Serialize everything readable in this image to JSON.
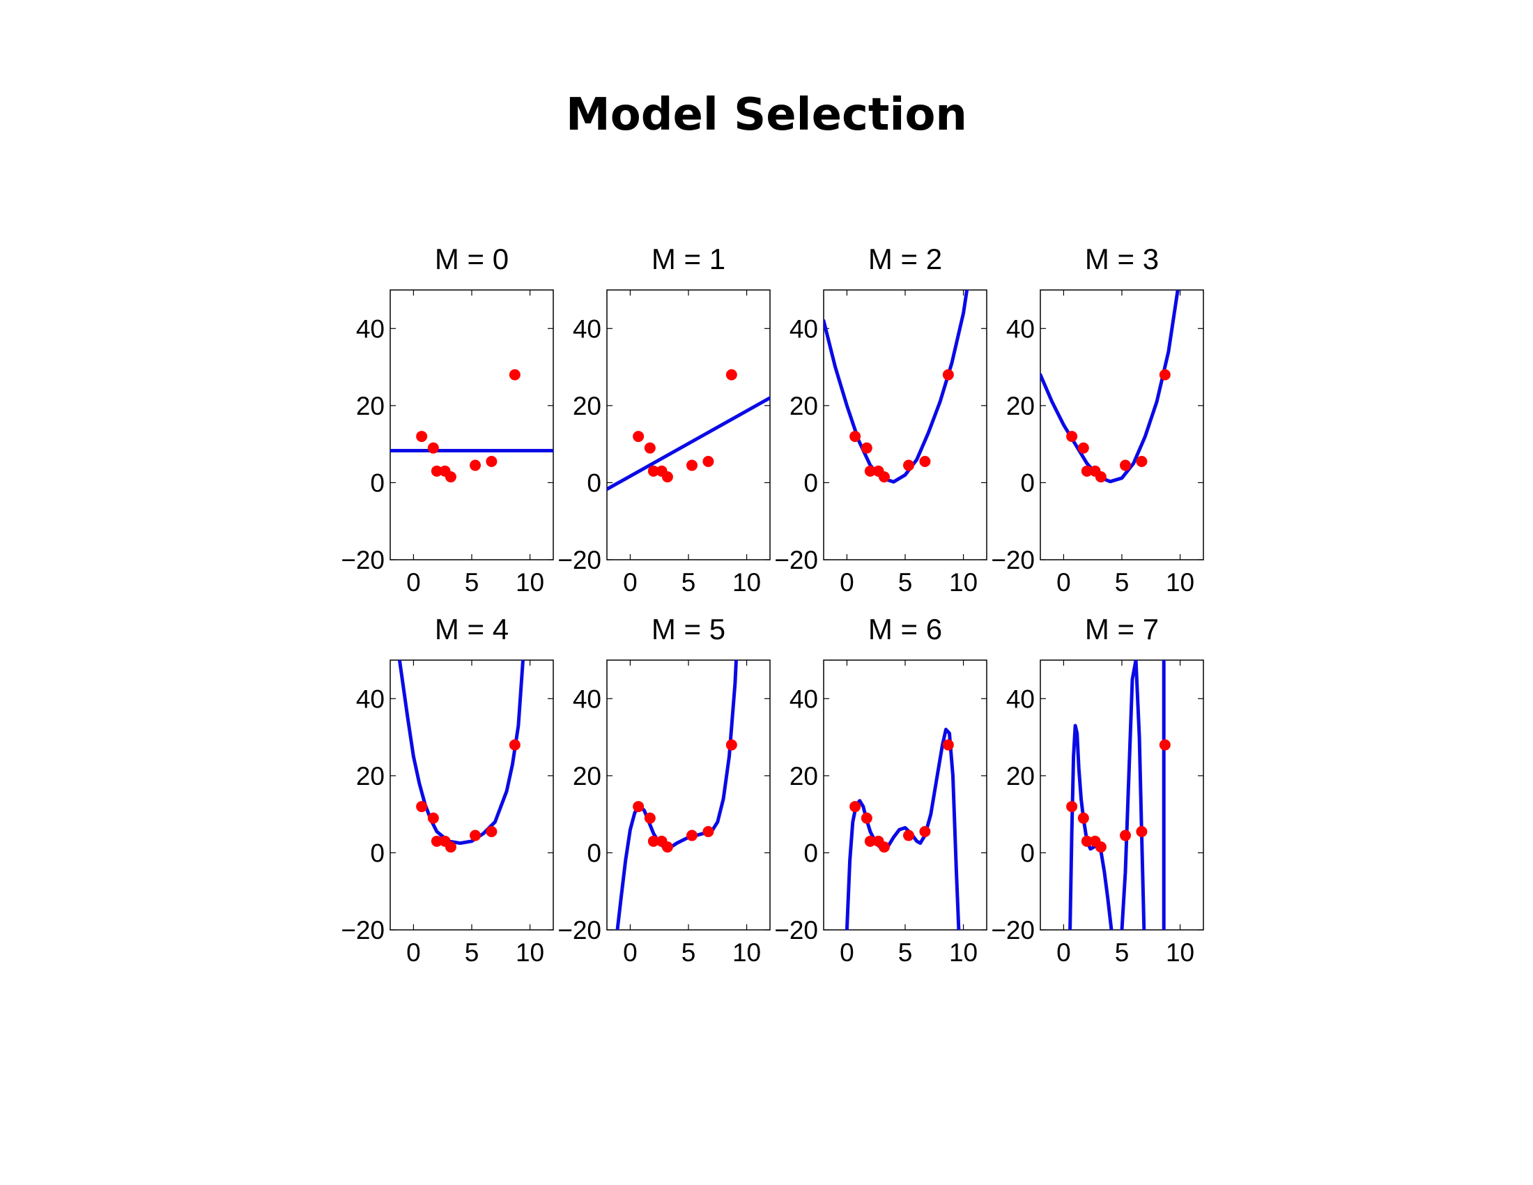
{
  "title": "Model Selection",
  "colors": {
    "curve": "#0a0ae6",
    "points": "#ff0000",
    "axes": "#000000",
    "background": "#ffffff"
  },
  "chart_data": [
    {
      "type": "line",
      "title": "M = 0",
      "xlim": [
        -2,
        12
      ],
      "ylim": [
        -20,
        50
      ],
      "xticks": [
        "0",
        "5",
        "10"
      ],
      "yticks": [
        "−20",
        "0",
        "20",
        "40"
      ],
      "grid": false,
      "points": {
        "x": [
          0.7,
          1.7,
          2.0,
          2.7,
          3.2,
          5.3,
          6.7,
          8.7
        ],
        "y": [
          12,
          9,
          3,
          3,
          1.5,
          4.5,
          5.5,
          28
        ]
      },
      "curve": {
        "x": [
          -2,
          12
        ],
        "y": [
          8.3,
          8.3
        ]
      }
    },
    {
      "type": "line",
      "title": "M = 1",
      "xlim": [
        -2,
        12
      ],
      "ylim": [
        -20,
        50
      ],
      "xticks": [
        "0",
        "5",
        "10"
      ],
      "yticks": [
        "−20",
        "0",
        "20",
        "40"
      ],
      "grid": false,
      "points": {
        "x": [
          0.7,
          1.7,
          2.0,
          2.7,
          3.2,
          5.3,
          6.7,
          8.7
        ],
        "y": [
          12,
          9,
          3,
          3,
          1.5,
          4.5,
          5.5,
          28
        ]
      },
      "curve": {
        "x": [
          -2,
          12
        ],
        "y": [
          -1.7,
          22
        ]
      }
    },
    {
      "type": "line",
      "title": "M = 2",
      "xlim": [
        -2,
        12
      ],
      "ylim": [
        -20,
        50
      ],
      "xticks": [
        "0",
        "5",
        "10"
      ],
      "yticks": [
        "−20",
        "0",
        "20",
        "40"
      ],
      "grid": false,
      "points": {
        "x": [
          0.7,
          1.7,
          2.0,
          2.7,
          3.2,
          5.3,
          6.7,
          8.7
        ],
        "y": [
          12,
          9,
          3,
          3,
          1.5,
          4.5,
          5.5,
          28
        ]
      },
      "curve": {
        "x": [
          -2,
          -1,
          0,
          1,
          2,
          3,
          4,
          5,
          6,
          7,
          8,
          9,
          10,
          10.3
        ],
        "y": [
          42,
          30,
          20,
          11,
          4.5,
          1.2,
          0.2,
          2,
          6,
          13,
          21,
          31,
          44,
          50
        ]
      }
    },
    {
      "type": "line",
      "title": "M = 3",
      "xlim": [
        -2,
        12
      ],
      "ylim": [
        -20,
        50
      ],
      "xticks": [
        "0",
        "5",
        "10"
      ],
      "yticks": [
        "−20",
        "0",
        "20",
        "40"
      ],
      "grid": false,
      "points": {
        "x": [
          0.7,
          1.7,
          2.0,
          2.7,
          3.2,
          5.3,
          6.7,
          8.7
        ],
        "y": [
          12,
          9,
          3,
          3,
          1.5,
          4.5,
          5.5,
          28
        ]
      },
      "curve": {
        "x": [
          -2,
          -1,
          0,
          1,
          2,
          3,
          4,
          5,
          6,
          7,
          8,
          9,
          9.8
        ],
        "y": [
          28,
          21,
          15,
          10,
          5,
          1.5,
          0.3,
          1.2,
          5,
          12,
          21,
          34,
          50
        ]
      }
    },
    {
      "type": "line",
      "title": "M = 4",
      "xlim": [
        -2,
        12
      ],
      "ylim": [
        -20,
        50
      ],
      "xticks": [
        "0",
        "5",
        "10"
      ],
      "yticks": [
        "−20",
        "0",
        "20",
        "40"
      ],
      "grid": false,
      "points": {
        "x": [
          0.7,
          1.7,
          2.0,
          2.7,
          3.2,
          5.3,
          6.7,
          8.7
        ],
        "y": [
          12,
          9,
          3,
          3,
          1.5,
          4.5,
          5.5,
          28
        ]
      },
      "curve": {
        "x": [
          -1.2,
          -0.5,
          0,
          0.5,
          1,
          1.5,
          2,
          3,
          4,
          5,
          6,
          7,
          8,
          8.5,
          9,
          9.4
        ],
        "y": [
          50,
          35,
          25,
          18,
          12.5,
          8.5,
          5.5,
          3,
          2.5,
          3,
          5,
          8,
          16,
          23,
          33,
          50
        ]
      }
    },
    {
      "type": "line",
      "title": "M = 5",
      "xlim": [
        -2,
        12
      ],
      "ylim": [
        -20,
        50
      ],
      "xticks": [
        "0",
        "5",
        "10"
      ],
      "yticks": [
        "−20",
        "0",
        "20",
        "40"
      ],
      "grid": false,
      "points": {
        "x": [
          0.7,
          1.7,
          2.0,
          2.7,
          3.2,
          5.3,
          6.7,
          8.7
        ],
        "y": [
          12,
          9,
          3,
          3,
          1.5,
          4.5,
          5.5,
          28
        ]
      },
      "curve": {
        "x": [
          -1.1,
          -0.8,
          -0.4,
          0,
          0.4,
          0.8,
          1.2,
          1.6,
          2,
          2.5,
          3,
          3.5,
          4,
          5,
          6,
          7,
          7.5,
          8,
          8.5,
          9,
          9.1
        ],
        "y": [
          -20,
          -12,
          -2,
          6,
          10.5,
          12,
          11,
          8,
          5,
          2.5,
          1.2,
          1.5,
          2.5,
          4,
          4.8,
          5.6,
          8,
          14,
          25,
          44,
          50
        ]
      }
    },
    {
      "type": "line",
      "title": "M = 6",
      "xlim": [
        -2,
        12
      ],
      "ylim": [
        -20,
        50
      ],
      "xticks": [
        "0",
        "5",
        "10"
      ],
      "yticks": [
        "−20",
        "0",
        "20",
        "40"
      ],
      "grid": false,
      "points": {
        "x": [
          0.7,
          1.7,
          2.0,
          2.7,
          3.2,
          5.3,
          6.7,
          8.7
        ],
        "y": [
          12,
          9,
          3,
          3,
          1.5,
          4.5,
          5.5,
          28
        ]
      },
      "curve": {
        "x": [
          0,
          0.25,
          0.5,
          0.8,
          1.1,
          1.4,
          1.7,
          2,
          2.5,
          3,
          3.5,
          4,
          4.5,
          5,
          5.5,
          6,
          6.3,
          6.7,
          7.2,
          7.7,
          8.2,
          8.5,
          8.8,
          9.1,
          9.4,
          9.6
        ],
        "y": [
          -20,
          -2,
          8,
          12.5,
          13.5,
          12,
          8.5,
          5.5,
          2.5,
          1,
          1.5,
          4,
          6,
          6.5,
          5,
          3,
          2.5,
          4.5,
          10,
          19,
          28,
          32,
          31,
          20,
          -5,
          -20
        ]
      }
    },
    {
      "type": "line",
      "title": "M = 7",
      "xlim": [
        -2,
        12
      ],
      "ylim": [
        -20,
        50
      ],
      "xticks": [
        "0",
        "5",
        "10"
      ],
      "yticks": [
        "−20",
        "0",
        "20",
        "40"
      ],
      "grid": false,
      "points": {
        "x": [
          0.7,
          1.7,
          2.0,
          2.7,
          3.2,
          5.3,
          6.7,
          8.7
        ],
        "y": [
          12,
          9,
          3,
          3,
          1.5,
          4.5,
          5.5,
          28
        ]
      },
      "curve": {
        "x": [
          0.55,
          0.7,
          0.85,
          1.0,
          1.15,
          1.3,
          1.5,
          1.7,
          2.0,
          2.3,
          2.6,
          2.9,
          3.2,
          3.5,
          3.8,
          4.1,
          4.4,
          4.7,
          5.0,
          5.3,
          5.6,
          5.9,
          6.2,
          6.5,
          6.7,
          6.9,
          7.1
        ],
        "y": [
          -20,
          5,
          25,
          33,
          31,
          22,
          14,
          9,
          3,
          1,
          1.5,
          2,
          0.5,
          -5,
          -12,
          -20,
          -35,
          -25,
          -20,
          -5,
          20,
          45,
          50,
          30,
          5,
          -20,
          -30
        ]
      },
      "curve2": {
        "x": [
          8.6,
          8.6
        ],
        "y": [
          -20,
          50
        ]
      }
    }
  ]
}
